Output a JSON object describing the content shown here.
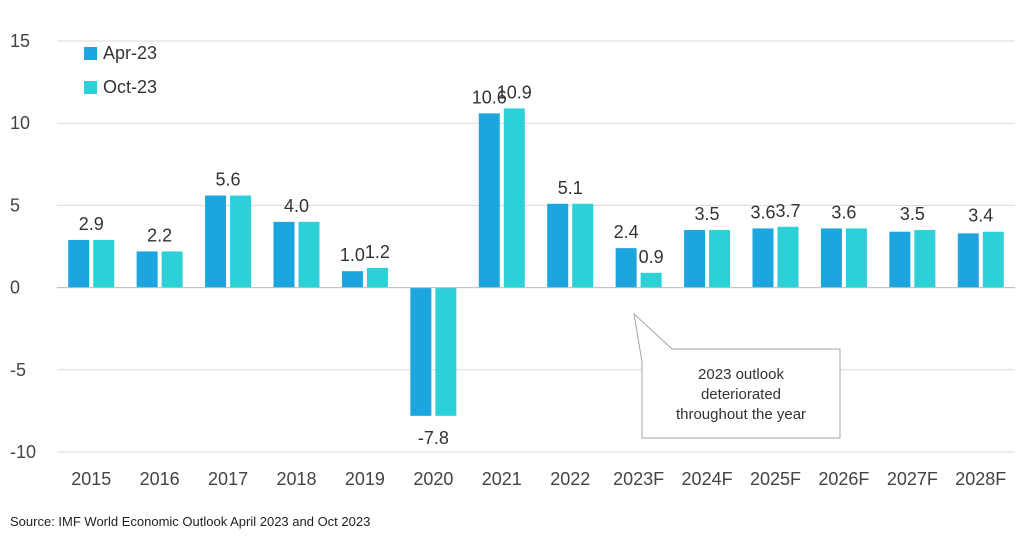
{
  "chart_data": {
    "type": "bar",
    "title": "",
    "xlabel": "",
    "ylabel": "",
    "categories": [
      "2015",
      "2016",
      "2017",
      "2018",
      "2019",
      "2020",
      "2021",
      "2022",
      "2023F",
      "2024F",
      "2025F",
      "2026F",
      "2027F",
      "2028F"
    ],
    "series": [
      {
        "name": "Apr-23",
        "color": "#1ba6e0",
        "values": [
          2.9,
          2.2,
          5.6,
          4.0,
          1.0,
          -7.8,
          10.6,
          5.1,
          2.4,
          3.5,
          3.6,
          3.6,
          3.4,
          3.3
        ]
      },
      {
        "name": "Oct-23",
        "color": "#2ed0d8",
        "values": [
          2.9,
          2.2,
          5.6,
          4.0,
          1.2,
          -7.8,
          10.9,
          5.1,
          0.9,
          3.5,
          3.7,
          3.6,
          3.5,
          3.4
        ]
      }
    ],
    "data_labels": [
      {
        "category": "2015",
        "text": "2.9",
        "value": 2.9
      },
      {
        "category": "2016",
        "text": "2.2",
        "value": 2.2
      },
      {
        "category": "2017",
        "text": "5.6",
        "value": 5.6
      },
      {
        "category": "2018",
        "text": "4.0",
        "value": 4.0
      },
      {
        "category": "2019",
        "series": 0,
        "text": "1.0",
        "value": 1.0
      },
      {
        "category": "2019",
        "series": 1,
        "text": "1.2",
        "value": 1.2
      },
      {
        "category": "2020",
        "text": "-7.8",
        "value": -7.8
      },
      {
        "category": "2021",
        "series": 0,
        "text": "10.6",
        "value": 10.6
      },
      {
        "category": "2021",
        "series": 1,
        "text": "10.9",
        "value": 10.9
      },
      {
        "category": "2022",
        "text": "5.1",
        "value": 5.1
      },
      {
        "category": "2023F",
        "series": 0,
        "text": "2.4",
        "value": 2.4
      },
      {
        "category": "2023F",
        "series": 1,
        "text": "0.9",
        "value": 0.9
      },
      {
        "category": "2024F",
        "text": "3.5",
        "value": 3.5
      },
      {
        "category": "2025F",
        "series": 0,
        "text": "3.6",
        "value": 3.6
      },
      {
        "category": "2025F",
        "series": 1,
        "text": "3.7",
        "value": 3.7
      },
      {
        "category": "2026F",
        "text": "3.6",
        "value": 3.6
      },
      {
        "category": "2027F",
        "text": "3.5",
        "value": 3.5
      },
      {
        "category": "2028F",
        "text": "3.4",
        "value": 3.4
      }
    ],
    "yticks": [
      15,
      10,
      5,
      0,
      -5,
      -10
    ],
    "ylim": [
      -10,
      15
    ],
    "grid": true,
    "legend_position": "top-left",
    "annotation": {
      "lines": [
        "2023 outlook",
        "deteriorated",
        "throughout the year"
      ],
      "points_to": "2023F"
    }
  },
  "source": "Source: IMF World Economic Outlook April 2023 and Oct 2023"
}
